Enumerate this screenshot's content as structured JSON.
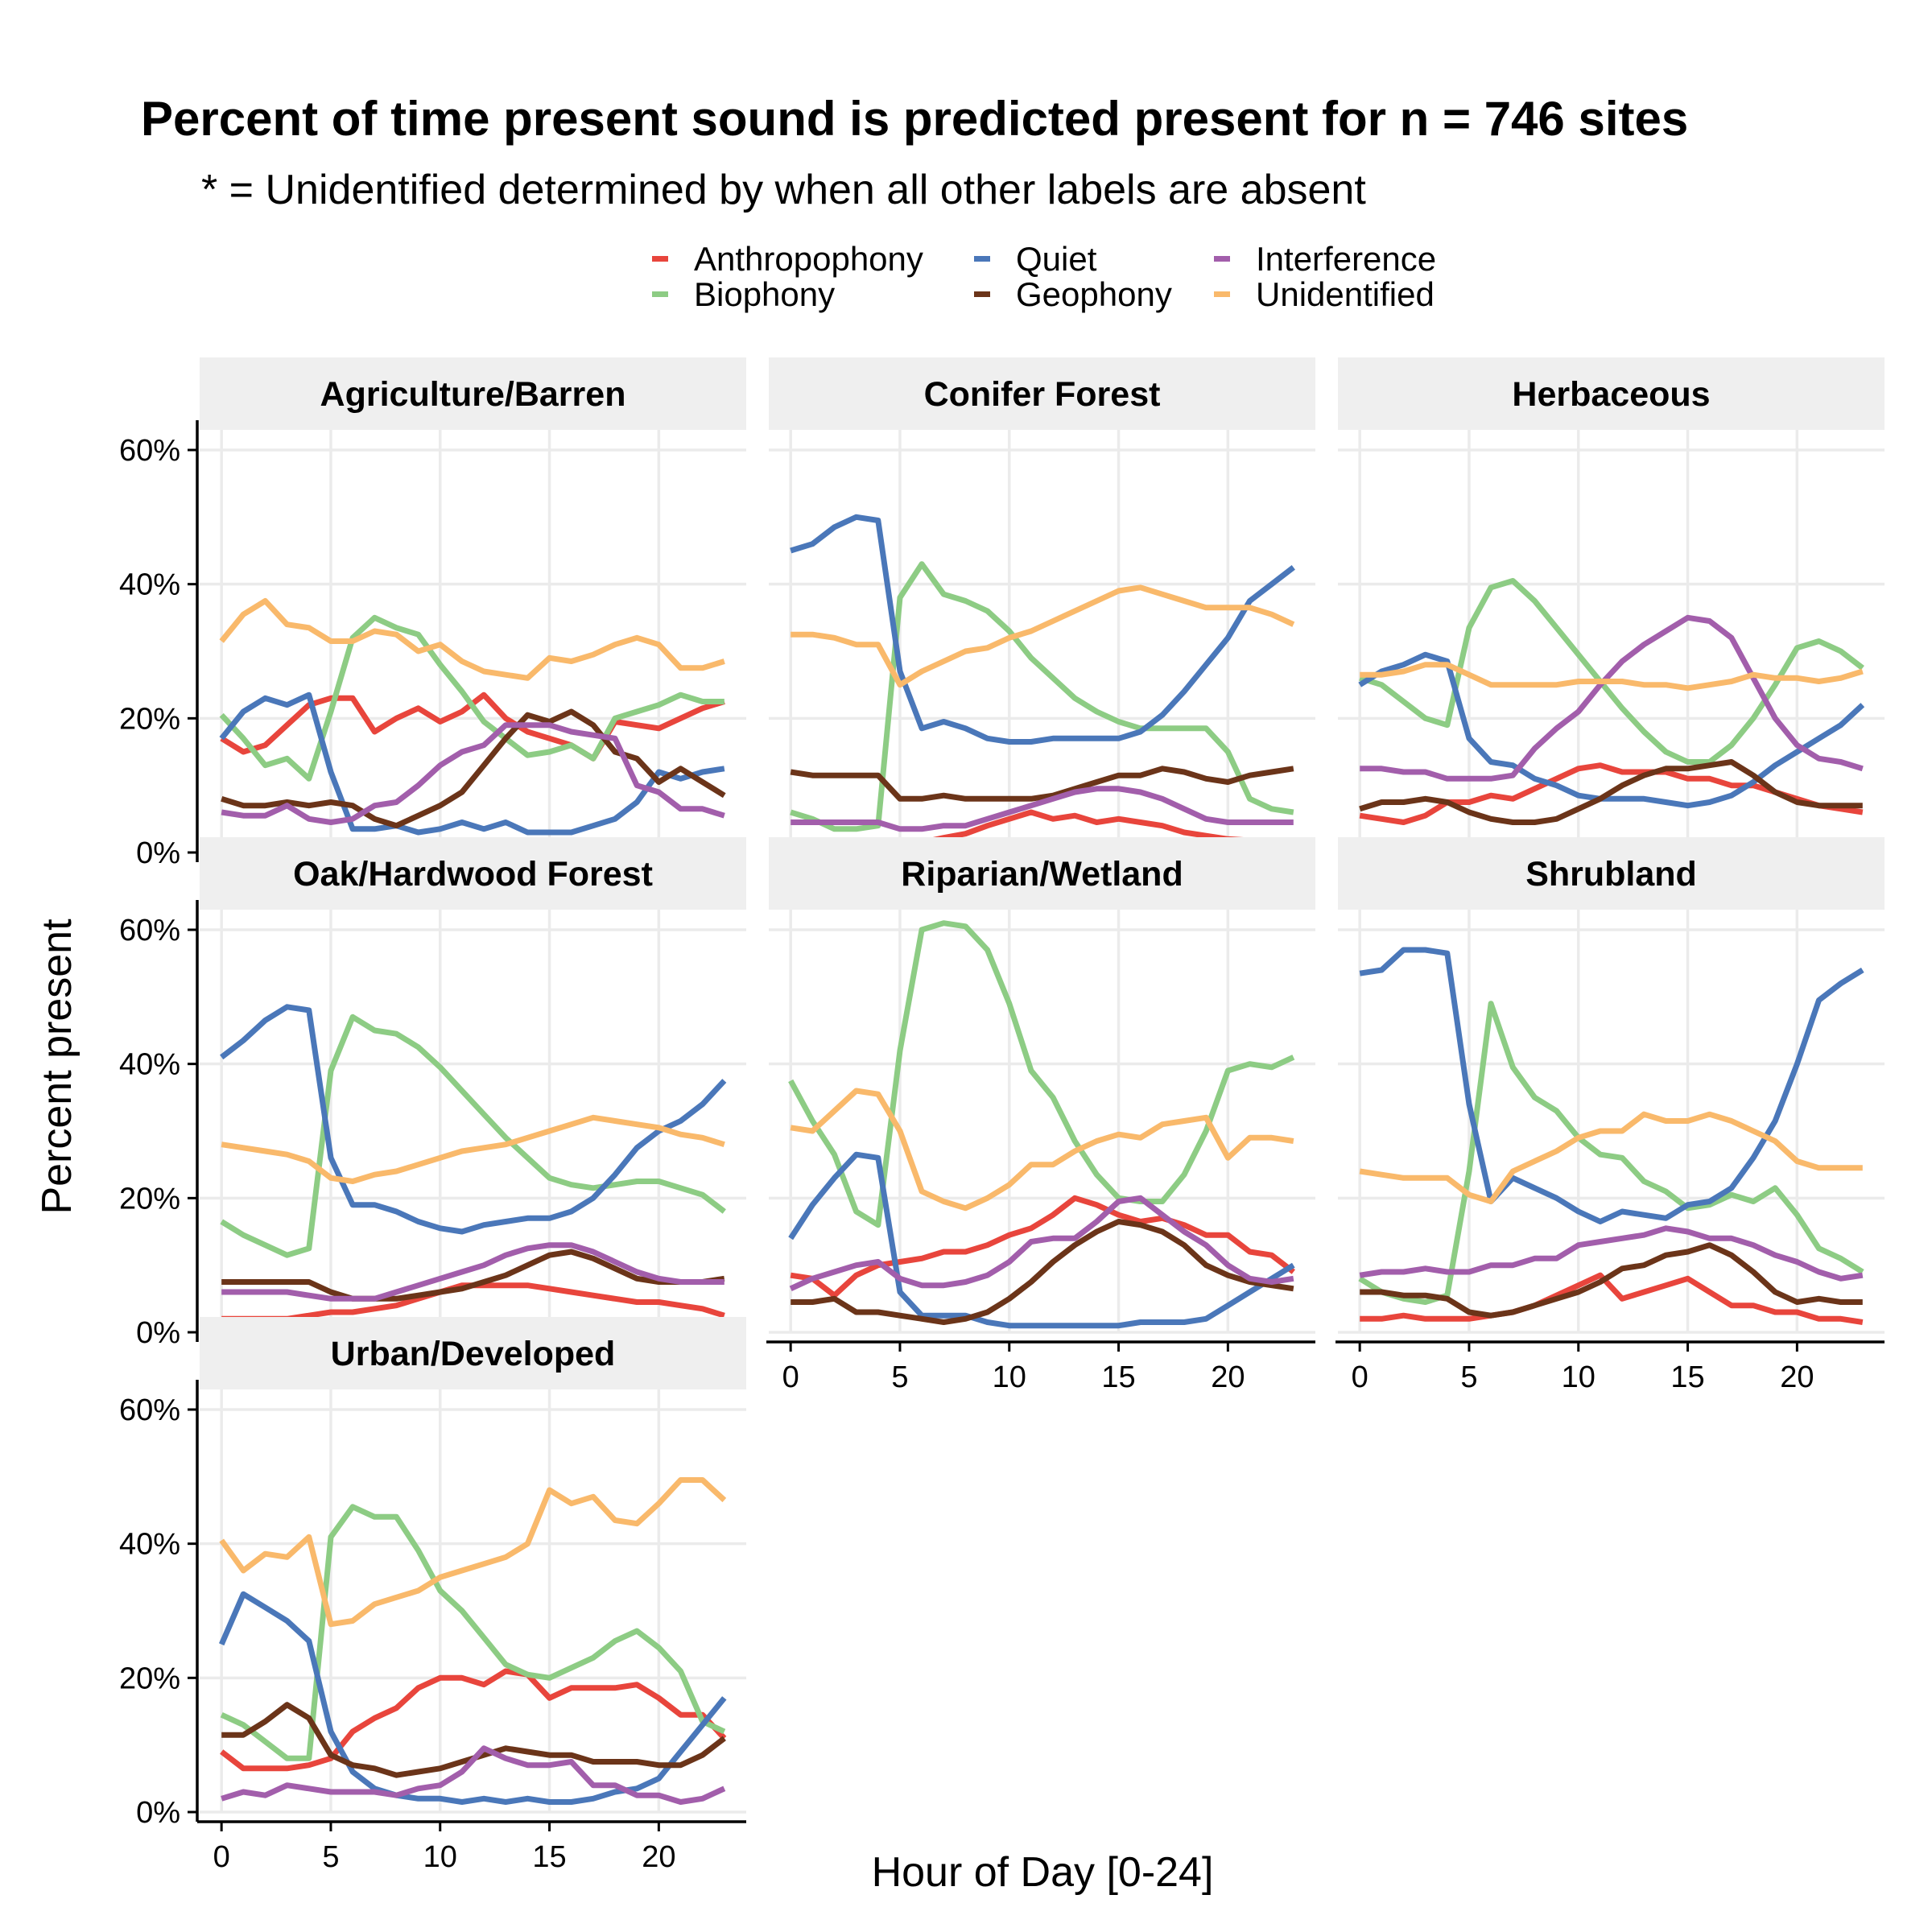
{
  "chart_data": {
    "type": "line",
    "title": "Percent of time present sound is predicted present for n = 746 sites",
    "subtitle": "* = Unidentified determined by when all other labels are absent",
    "xlabel": "Hour of Day [0-24]",
    "ylabel": "Percent present",
    "x_ticks": [
      0,
      5,
      10,
      15,
      20
    ],
    "y_ticks": [
      "0%",
      "20%",
      "40%",
      "60%"
    ],
    "xlim": [
      -1,
      24
    ],
    "ylim": [
      0,
      63
    ],
    "legend": {
      "position": "top",
      "ncol": 3
    },
    "colors": {
      "Anthropophony": "#e8453c",
      "Biophony": "#8dcc84",
      "Quiet": "#4a77b9",
      "Geophony": "#6b3419",
      "Interference": "#a25eab",
      "Unidentified": "#f9b96b"
    },
    "series_order": [
      "Anthropophony",
      "Biophony",
      "Quiet",
      "Geophony",
      "Interference",
      "Unidentified"
    ],
    "x": [
      0,
      1,
      2,
      3,
      4,
      5,
      6,
      7,
      8,
      9,
      10,
      11,
      12,
      13,
      14,
      15,
      16,
      17,
      18,
      19,
      20,
      21,
      22,
      23
    ],
    "panels": [
      {
        "name": "Agriculture/Barren",
        "series": {
          "Anthropophony": [
            17,
            15,
            16,
            19,
            22,
            23,
            23,
            18,
            20,
            21.5,
            19.5,
            21,
            23.5,
            20,
            18,
            17,
            16,
            14,
            19.5,
            19,
            18.5,
            20,
            21.5,
            22.5
          ],
          "Biophony": [
            20.5,
            17,
            13,
            14,
            11,
            21,
            32,
            35,
            33.5,
            32.5,
            28,
            24,
            19.5,
            17,
            14.5,
            15,
            16,
            14,
            20,
            21,
            22,
            23.5,
            22.5,
            22.5
          ],
          "Quiet": [
            17,
            21,
            23,
            22,
            23.5,
            12,
            3.5,
            3.5,
            4,
            3,
            3.5,
            4.5,
            3.5,
            4.5,
            3,
            3,
            3,
            4,
            5,
            7.5,
            12,
            11,
            12,
            12.5
          ],
          "Geophony": [
            8,
            7,
            7,
            7.5,
            7,
            7.5,
            7,
            5,
            4,
            5.5,
            7,
            9,
            13,
            17,
            20.5,
            19.5,
            21,
            19,
            15,
            14,
            10.5,
            12.5,
            10.5,
            8.5
          ],
          "Interference": [
            6,
            5.5,
            5.5,
            7,
            5,
            4.5,
            5,
            7,
            7.5,
            10,
            13,
            15,
            16,
            19,
            19,
            19,
            18,
            17.5,
            17,
            10,
            9,
            6.5,
            6.5,
            5.5
          ],
          "Unidentified": [
            31.5,
            35.5,
            37.5,
            34,
            33.5,
            31.5,
            31.5,
            33,
            32.5,
            30,
            31,
            28.5,
            27,
            26.5,
            26,
            29,
            28.5,
            29.5,
            31,
            32,
            31,
            27.5,
            27.5,
            28.5
          ]
        }
      },
      {
        "name": "Conifer Forest",
        "series": {
          "Anthropophony": [
            1,
            1.2,
            1.2,
            1.2,
            1.2,
            1.2,
            1.5,
            2.2,
            2.8,
            4,
            5,
            6,
            5,
            5.5,
            4.5,
            5,
            4.5,
            4,
            3,
            2.5,
            2,
            1.8,
            1.5,
            1
          ],
          "Biophony": [
            6,
            5,
            3.5,
            3.5,
            4,
            38,
            43,
            38.5,
            37.5,
            36,
            33,
            29,
            26,
            23,
            21,
            19.5,
            18.5,
            18.5,
            18.5,
            18.5,
            15,
            8,
            6.5,
            6
          ],
          "Quiet": [
            45,
            46,
            48.5,
            50,
            49.5,
            27,
            18.5,
            19.5,
            18.5,
            17,
            16.5,
            16.5,
            17,
            17,
            17,
            17,
            18,
            20.5,
            24,
            28,
            32,
            37.5,
            40,
            42.5
          ],
          "Geophony": [
            12,
            11.5,
            11.5,
            11.5,
            11.5,
            8,
            8,
            8.5,
            8,
            8,
            8,
            8,
            8.5,
            9.5,
            10.5,
            11.5,
            11.5,
            12.5,
            12,
            11,
            10.5,
            11.5,
            12,
            12.5
          ],
          "Interference": [
            4.5,
            4.5,
            4.5,
            4.5,
            4.5,
            3.5,
            3.5,
            4,
            4,
            5,
            6,
            7,
            8,
            9,
            9.5,
            9.5,
            9,
            8,
            6.5,
            5,
            4.5,
            4.5,
            4.5,
            4.5
          ],
          "Unidentified": [
            32.5,
            32.5,
            32,
            31,
            31,
            25,
            27,
            28.5,
            30,
            30.5,
            32,
            33,
            34.5,
            36,
            37.5,
            39,
            39.5,
            38.5,
            37.5,
            36.5,
            36.5,
            36.5,
            35.5,
            34
          ]
        }
      },
      {
        "name": "Herbaceous",
        "series": {
          "Anthropophony": [
            5.5,
            5,
            4.5,
            5.5,
            7.5,
            7.5,
            8.5,
            8,
            9.5,
            11,
            12.5,
            13,
            12,
            12,
            12,
            11,
            11,
            10,
            10,
            9,
            8,
            7,
            6.5,
            6
          ],
          "Biophony": [
            26,
            25,
            22.5,
            20,
            19,
            33.5,
            39.5,
            40.5,
            37.5,
            33.5,
            29.5,
            25.5,
            21.5,
            18,
            15,
            13.5,
            13.5,
            16,
            20,
            25,
            30.5,
            31.5,
            30,
            27.5
          ],
          "Quiet": [
            25,
            27,
            28,
            29.5,
            28.5,
            17,
            13.5,
            13,
            11,
            10,
            8.5,
            8,
            8,
            8,
            7.5,
            7,
            7.5,
            8.5,
            10.5,
            13,
            15,
            17,
            19,
            22
          ],
          "Geophony": [
            6.5,
            7.5,
            7.5,
            8,
            7.5,
            6,
            5,
            4.5,
            4.5,
            5,
            6.5,
            8,
            10,
            11.5,
            12.5,
            12.5,
            13,
            13.5,
            11.5,
            9,
            7.5,
            7,
            7,
            7
          ],
          "Interference": [
            12.5,
            12.5,
            12,
            12,
            11,
            11,
            11,
            11.5,
            15.5,
            18.5,
            21,
            25,
            28.5,
            31,
            33,
            35,
            34.5,
            32,
            26,
            20,
            16,
            14,
            13.5,
            12.5
          ],
          "Unidentified": [
            26.5,
            26.5,
            27,
            28,
            28,
            26.5,
            25,
            25,
            25,
            25,
            25.5,
            25.5,
            25.5,
            25,
            25,
            24.5,
            25,
            25.5,
            26.5,
            26,
            26,
            25.5,
            26,
            27
          ]
        }
      },
      {
        "name": "Oak/Hardwood Forest",
        "series": {
          "Anthropophony": [
            2,
            2,
            2,
            2,
            2.5,
            3,
            3,
            3.5,
            4,
            5,
            6,
            7,
            7,
            7,
            7,
            6.5,
            6,
            5.5,
            5,
            4.5,
            4.5,
            4,
            3.5,
            2.5
          ],
          "Biophony": [
            16.5,
            14.5,
            13,
            11.5,
            12.5,
            39,
            47,
            45,
            44.5,
            42.5,
            39.5,
            36,
            32.5,
            29,
            26,
            23,
            22,
            21.5,
            22,
            22.5,
            22.5,
            21.5,
            20.5,
            18
          ],
          "Quiet": [
            41,
            43.5,
            46.5,
            48.5,
            48,
            26,
            19,
            19,
            18,
            16.5,
            15.5,
            15,
            16,
            16.5,
            17,
            17,
            18,
            20,
            23.5,
            27.5,
            30,
            31.5,
            34,
            37.5
          ],
          "Geophony": [
            7.5,
            7.5,
            7.5,
            7.5,
            7.5,
            6,
            5,
            5,
            5,
            5.5,
            6,
            6.5,
            7.5,
            8.5,
            10,
            11.5,
            12,
            11,
            9.5,
            8,
            7.5,
            7.5,
            7.5,
            8
          ],
          "Interference": [
            6,
            6,
            6,
            6,
            5.5,
            5,
            5,
            5,
            6,
            7,
            8,
            9,
            10,
            11.5,
            12.5,
            13,
            13,
            12,
            10.5,
            9,
            8,
            7.5,
            7.5,
            7.5
          ],
          "Unidentified": [
            28,
            27.5,
            27,
            26.5,
            25.5,
            23,
            22.5,
            23.5,
            24,
            25,
            26,
            27,
            27.5,
            28,
            29,
            30,
            31,
            32,
            31.5,
            31,
            30.5,
            29.5,
            29,
            28
          ]
        }
      },
      {
        "name": "Riparian/Wetland",
        "series": {
          "Anthropophony": [
            8.5,
            8,
            5.5,
            8.5,
            10,
            10.5,
            11,
            12,
            12,
            13,
            14.5,
            15.5,
            17.5,
            20,
            19,
            17.5,
            16.5,
            17,
            16,
            14.5,
            14.5,
            12,
            11.5,
            9
          ],
          "Biophony": [
            37.5,
            31.5,
            26.5,
            18,
            16,
            42,
            60,
            61,
            60.5,
            57,
            49,
            39,
            35,
            28.5,
            23.5,
            20,
            19.5,
            19.5,
            23.5,
            30,
            39,
            40,
            39.5,
            41
          ],
          "Quiet": [
            14,
            19,
            23,
            26.5,
            26,
            6,
            2.5,
            2.5,
            2.5,
            1.5,
            1,
            1,
            1,
            1,
            1,
            1,
            1.5,
            1.5,
            1.5,
            2,
            4,
            6,
            8,
            10
          ],
          "Geophony": [
            4.5,
            4.5,
            5,
            3,
            3,
            2.5,
            2,
            1.5,
            2,
            3,
            5,
            7.5,
            10.5,
            13,
            15,
            16.5,
            16,
            15,
            13,
            10,
            8.5,
            7.5,
            7,
            6.5
          ],
          "Interference": [
            6.5,
            8,
            9,
            10,
            10.5,
            8,
            7,
            7,
            7.5,
            8.5,
            10.5,
            13.5,
            14,
            14,
            16.5,
            19.5,
            20,
            17.5,
            15,
            13,
            10,
            8,
            7.5,
            8
          ],
          "Unidentified": [
            30.5,
            30,
            33,
            36,
            35.5,
            30,
            21,
            19.5,
            18.5,
            20,
            22,
            25,
            25,
            27,
            28.5,
            29.5,
            29,
            31,
            31.5,
            32,
            26,
            29,
            29,
            28.5
          ]
        }
      },
      {
        "name": "Shrubland",
        "series": {
          "Anthropophony": [
            2,
            2,
            2.5,
            2,
            2,
            2,
            2.5,
            3,
            4,
            5.5,
            7,
            8.5,
            5,
            6,
            7,
            8,
            6,
            4,
            4,
            3,
            3,
            2,
            2,
            1.5
          ],
          "Biophony": [
            8,
            6,
            5,
            4.5,
            5.5,
            24,
            49,
            39.5,
            35,
            33,
            29,
            26.5,
            26,
            22.5,
            21,
            18.5,
            19,
            20.5,
            19.5,
            21.5,
            17.5,
            12.5,
            11,
            9
          ],
          "Quiet": [
            53.5,
            54,
            57,
            57,
            56.5,
            34,
            19.5,
            23,
            21.5,
            20,
            18,
            16.5,
            18,
            17.5,
            17,
            19,
            19.5,
            21.5,
            26,
            31.5,
            40,
            49.5,
            52,
            54
          ],
          "Geophony": [
            6,
            6,
            5.5,
            5.5,
            5,
            3,
            2.5,
            3,
            4,
            5,
            6,
            7.5,
            9.5,
            10,
            11.5,
            12,
            13,
            11.5,
            9,
            6,
            4.5,
            5,
            4.5,
            4.5
          ],
          "Interference": [
            8.5,
            9,
            9,
            9.5,
            9,
            9,
            10,
            10,
            11,
            11,
            13,
            13.5,
            14,
            14.5,
            15.5,
            15,
            14,
            14,
            13,
            11.5,
            10.5,
            9,
            8,
            8.5
          ],
          "Unidentified": [
            24,
            23.5,
            23,
            23,
            23,
            20.5,
            19.5,
            24,
            25.5,
            27,
            29,
            30,
            30,
            32.5,
            31.5,
            31.5,
            32.5,
            31.5,
            30,
            28.5,
            25.5,
            24.5,
            24.5,
            24.5
          ]
        }
      },
      {
        "name": "Urban/Developed",
        "series": {
          "Anthropophony": [
            9,
            6.5,
            6.5,
            6.5,
            7,
            8,
            12,
            14,
            15.5,
            18.5,
            20,
            20,
            19,
            21,
            20.5,
            17,
            18.5,
            18.5,
            18.5,
            19,
            17,
            14.5,
            14.5,
            11
          ],
          "Biophony": [
            14.5,
            13,
            10.5,
            8,
            8,
            41,
            45.5,
            44,
            44,
            39,
            33,
            30,
            26,
            22,
            20.5,
            20,
            21.5,
            23,
            25.5,
            27,
            24.5,
            21,
            13.5,
            12
          ],
          "Quiet": [
            25,
            32.5,
            30.5,
            28.5,
            25.5,
            12,
            6,
            3.5,
            2.5,
            2,
            2,
            1.5,
            2,
            1.5,
            2,
            1.5,
            1.5,
            2,
            3,
            3.5,
            5,
            9,
            13,
            17
          ],
          "Geophony": [
            11.5,
            11.5,
            13.5,
            16,
            14,
            8.5,
            7,
            6.5,
            5.5,
            6,
            6.5,
            7.5,
            8.5,
            9.5,
            9,
            8.5,
            8.5,
            7.5,
            7.5,
            7.5,
            7,
            7,
            8.5,
            11
          ],
          "Interference": [
            2,
            3,
            2.5,
            4,
            3.5,
            3,
            3,
            3,
            2.5,
            3.5,
            4,
            6,
            9.5,
            8,
            7,
            7,
            7.5,
            4,
            4,
            2.5,
            2.5,
            1.5,
            2,
            3.5
          ],
          "Unidentified": [
            40.5,
            36,
            38.5,
            38,
            41,
            28,
            28.5,
            31,
            32,
            33,
            35,
            36,
            37,
            38,
            40,
            48,
            46,
            47,
            43.5,
            43,
            46,
            49.5,
            49.5,
            46.5
          ]
        }
      }
    ]
  }
}
